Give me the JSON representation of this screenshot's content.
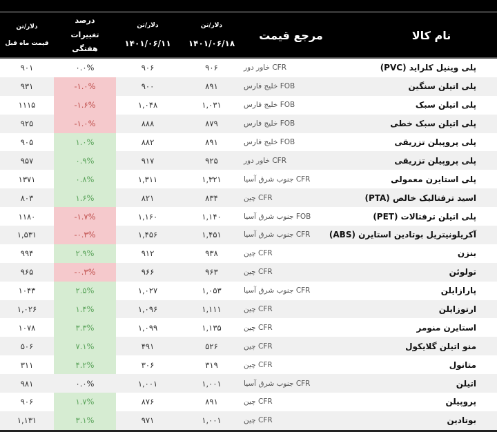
{
  "header": {
    "unit": "دلار/تن",
    "prev_month": "قیمت ماه قبل",
    "weekly_change": "درصد تغییرات هفتگی",
    "date_prev_week": "۱۴۰۱/۰۶/۱۱",
    "date_current": "۱۴۰۱/۰۶/۱۸",
    "price_reference": "مرجع قیمت",
    "product_name": "نام کالا"
  },
  "colors": {
    "negative_bg": "#f5c9cc",
    "positive_bg": "#d6ecd2",
    "header_bg": "#000000"
  },
  "rows": [
    {
      "name": "پلی وینیل کلراید (PVC)",
      "ref": "CFR خاور دور",
      "current": "۹۰۶",
      "prev_week": "۹۰۶",
      "change": "۰.۰%",
      "prev_month": "۹۰۱",
      "trend": "none"
    },
    {
      "name": "پلی اتیلن سنگین",
      "ref": "FOB خلیج فارس",
      "current": "۸۹۱",
      "prev_week": "۹۰۰",
      "change": "-۱.۰%",
      "prev_month": "۹۳۱",
      "trend": "red"
    },
    {
      "name": "پلی اتیلن سبک",
      "ref": "FOB خلیج فارس",
      "current": "۱,۰۳۱",
      "prev_week": "۱,۰۴۸",
      "change": "-۱.۶%",
      "prev_month": "۱۱۱۵",
      "trend": "red"
    },
    {
      "name": "پلی اتیلن سبک خطی",
      "ref": "FOB خلیج فارس",
      "current": "۸۷۹",
      "prev_week": "۸۸۸",
      "change": "-۱.۰%",
      "prev_month": "۹۲۵",
      "trend": "red"
    },
    {
      "name": "پلی پروپیلن تزریقی",
      "ref": "FOB خلیج فارس",
      "current": "۸۹۱",
      "prev_week": "۸۸۲",
      "change": "۱.۰%",
      "prev_month": "۹۰۵",
      "trend": "green"
    },
    {
      "name": "پلی پروپیلن تزریقی",
      "ref": "CFR خاور دور",
      "current": "۹۲۵",
      "prev_week": "۹۱۷",
      "change": "۰.۹%",
      "prev_month": "۹۵۷",
      "trend": "green"
    },
    {
      "name": "پلی استایرن معمولی",
      "ref": "CFR جنوب شرق آسیا",
      "current": "۱,۳۲۱",
      "prev_week": "۱,۳۱۱",
      "change": "۰.۸%",
      "prev_month": "۱۳۷۱",
      "trend": "green"
    },
    {
      "name": "اسید ترفتالیک خالص (PTA)",
      "ref": "CFR چین",
      "current": "۸۳۴",
      "prev_week": "۸۲۱",
      "change": "۱.۶%",
      "prev_month": "۸۰۳",
      "trend": "green"
    },
    {
      "name": "پلی اتیلن ترفتالات (PET)",
      "ref": "FOB جنوب شرق آسیا",
      "current": "۱,۱۴۰",
      "prev_week": "۱,۱۶۰",
      "change": "-۱.۷%",
      "prev_month": "۱۱۸۰",
      "trend": "red"
    },
    {
      "name": "آکریلونیتریل بوتادین استایرن (ABS)",
      "ref": "CFR جنوب شرق آسیا",
      "current": "۱,۴۵۱",
      "prev_week": "۱,۴۵۶",
      "change": "-۰.۳%",
      "prev_month": "۱,۵۳۱",
      "trend": "red"
    },
    {
      "name": "بنزن",
      "ref": "CFR چین",
      "current": "۹۳۸",
      "prev_week": "۹۱۲",
      "change": "۲.۹%",
      "prev_month": "۹۹۴",
      "trend": "green"
    },
    {
      "name": "تولوئن",
      "ref": "CFR چین",
      "current": "۹۶۳",
      "prev_week": "۹۶۶",
      "change": "-۰.۳%",
      "prev_month": "۹۶۵",
      "trend": "red"
    },
    {
      "name": "پارازایلن",
      "ref": "CFR جنوب شرق آسیا",
      "current": "۱,۰۵۳",
      "prev_week": "۱,۰۲۷",
      "change": "۲.۵%",
      "prev_month": "۱۰۴۳",
      "trend": "green"
    },
    {
      "name": "ارتوزایلن",
      "ref": "CFR چین",
      "current": "۱,۱۱۱",
      "prev_week": "۱,۰۹۶",
      "change": "۱.۴%",
      "prev_month": "۱,۰۲۶",
      "trend": "green"
    },
    {
      "name": "استایرن منومر",
      "ref": "CFR چین",
      "current": "۱,۱۳۵",
      "prev_week": "۱,۰۹۹",
      "change": "۳.۳%",
      "prev_month": "۱۰۷۸",
      "trend": "green"
    },
    {
      "name": "منو اتیلن گلایکول",
      "ref": "CFR چین",
      "current": "۵۲۶",
      "prev_week": "۴۹۱",
      "change": "۷.۱%",
      "prev_month": "۵۰۶",
      "trend": "green"
    },
    {
      "name": "متانول",
      "ref": "CFR چین",
      "current": "۳۱۹",
      "prev_week": "۳۰۶",
      "change": "۴.۲%",
      "prev_month": "۳۱۱",
      "trend": "green"
    },
    {
      "name": "اتیلن",
      "ref": "CFR جنوب شرق آسیا",
      "current": "۱,۰۰۱",
      "prev_week": "۱,۰۰۱",
      "change": "۰.۰%",
      "prev_month": "۹۸۱",
      "trend": "none"
    },
    {
      "name": "پروپیلن",
      "ref": "CFR چین",
      "current": "۸۹۱",
      "prev_week": "۸۷۶",
      "change": "۱.۷%",
      "prev_month": "۹۰۶",
      "trend": "green"
    },
    {
      "name": "بوتادین",
      "ref": "CFR چین",
      "current": "۱,۰۰۱",
      "prev_week": "۹۷۱",
      "change": "۳.۱%",
      "prev_month": "۱,۱۳۱",
      "trend": "green"
    }
  ]
}
